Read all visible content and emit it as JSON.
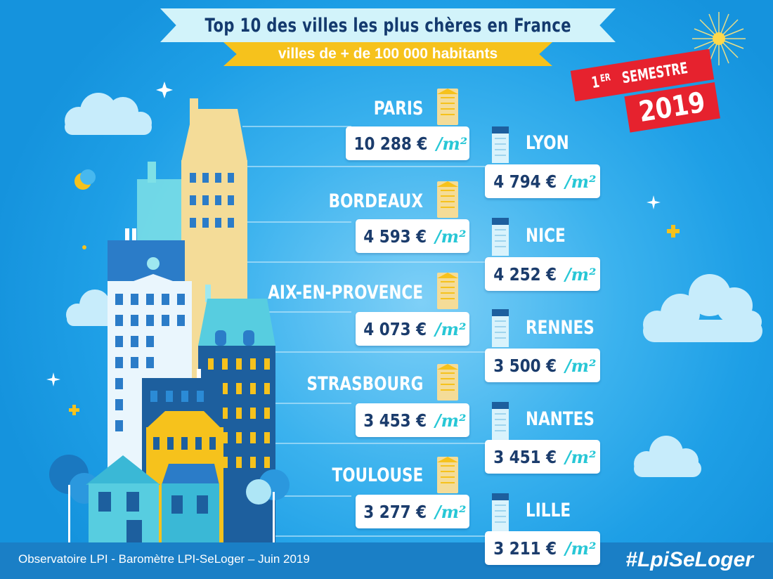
{
  "header": {
    "title": "Top 10 des villes les plus chères en France",
    "subtitle": "villes de + de 100 000 habitants",
    "badge_prefix": "1",
    "badge_superscript": "er",
    "badge_label": "semestre",
    "badge_year": "2019"
  },
  "chart_data": {
    "type": "table",
    "title": "Top 10 des villes les plus chères en France",
    "subtitle": "villes de + de 100 000 habitants",
    "unit": "€ /m²",
    "unit_currency": "€",
    "unit_area": "/m²",
    "rows": [
      {
        "rank": 1,
        "city": "PARIS",
        "price": "10 288",
        "value": 10288
      },
      {
        "rank": 2,
        "city": "LYON",
        "price": "4 794",
        "value": 4794
      },
      {
        "rank": 3,
        "city": "BORDEAUX",
        "price": "4 593",
        "value": 4593
      },
      {
        "rank": 4,
        "city": "NICE",
        "price": "4 252",
        "value": 4252
      },
      {
        "rank": 5,
        "city": "AIX-EN-PROVENCE",
        "price": "4 073",
        "value": 4073
      },
      {
        "rank": 6,
        "city": "RENNES",
        "price": "3 500",
        "value": 3500
      },
      {
        "rank": 7,
        "city": "STRASBOURG",
        "price": "3 453",
        "value": 3453
      },
      {
        "rank": 8,
        "city": "NANTES",
        "price": "3 451",
        "value": 3451
      },
      {
        "rank": 9,
        "city": "TOULOUSE",
        "price": "3 277",
        "value": 3277
      },
      {
        "rank": 10,
        "city": "LILLE",
        "price": "3 211",
        "value": 3211
      }
    ]
  },
  "footer": {
    "source": "Observatoire LPI - Baromètre LPI-SeLoger – Juin 2019",
    "hashtag": "#LpiSeLoger"
  },
  "colors": {
    "navy": "#1b3c6c",
    "accent_cyan": "#28c7d6",
    "badge_red": "#e6222e",
    "ribbon_yellow": "#f6c21c",
    "footer_blue": "#1a7fc6"
  },
  "icons": [
    "building-icon",
    "cloud-icon",
    "star-icon",
    "moon-icon",
    "sun-icon"
  ]
}
